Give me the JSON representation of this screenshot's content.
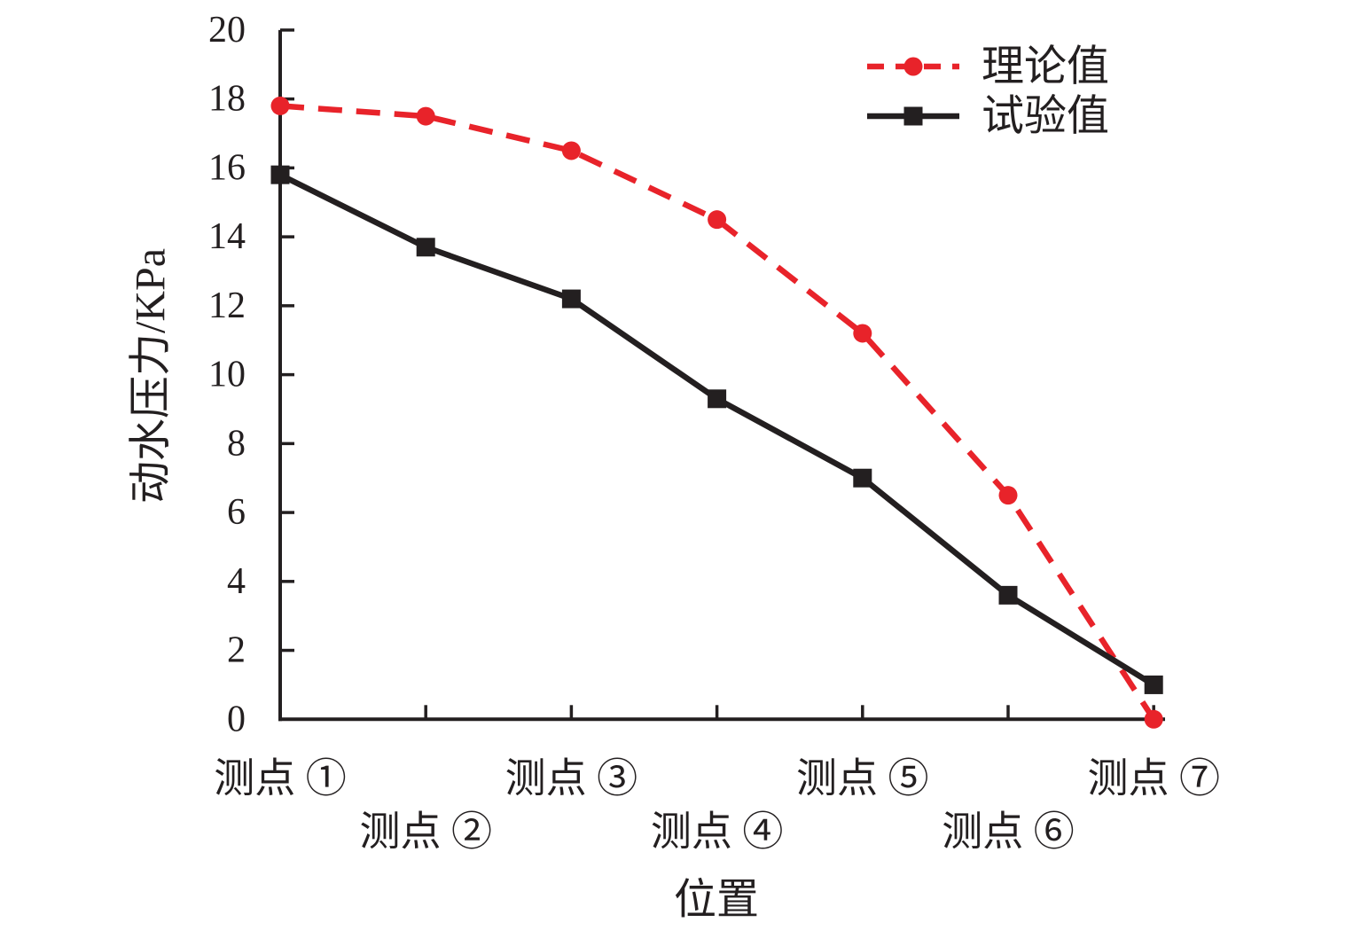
{
  "background_color": "#ffffff",
  "axis_color": "#231f20",
  "text_color": "#231f20",
  "chart_data": {
    "type": "line",
    "title": "",
    "xlabel": "位置",
    "ylabel": "动水压力/KPa",
    "categories": [
      "测点 ①",
      "测点 ②",
      "测点 ③",
      "测点 ④",
      "测点 ⑤",
      "测点 ⑥",
      "测点 ⑦"
    ],
    "y_ticks": [
      0,
      2,
      4,
      6,
      8,
      10,
      12,
      14,
      16,
      18,
      20
    ],
    "ylim": [
      0,
      20
    ],
    "grid": false,
    "legend_position": "top-right-inside",
    "x_label_layout": "staggered-two-rows",
    "series": [
      {
        "name": "理论值",
        "key": "theoretical",
        "color": "#e8232a",
        "line_style": "dashed",
        "marker": "circle",
        "values": [
          17.8,
          17.5,
          16.5,
          14.5,
          11.2,
          6.5,
          0
        ]
      },
      {
        "name": "试验值",
        "key": "experimental",
        "color": "#231f20",
        "line_style": "solid",
        "marker": "square",
        "values": [
          15.8,
          13.7,
          12.2,
          9.3,
          7.0,
          3.6,
          1.0
        ]
      }
    ]
  }
}
